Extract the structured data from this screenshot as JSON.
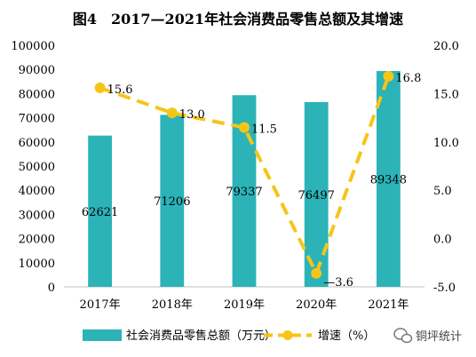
{
  "chart_data": {
    "type": "bar",
    "title": "图4　2017—2021年社会消费品零售总额及其增速",
    "categories": [
      "2017年",
      "2018年",
      "2019年",
      "2020年",
      "2021年"
    ],
    "series": [
      {
        "name": "社会消费品零售总额（万元）",
        "type": "bar",
        "axis": "left",
        "color": "#2bb3b8",
        "values": [
          62621,
          71206,
          79337,
          76497,
          89348
        ],
        "labels": [
          "62621",
          "71206",
          "79337",
          "76497",
          "89348"
        ]
      },
      {
        "name": "增速（%）",
        "type": "line",
        "style": "dashed",
        "axis": "right",
        "color": "#f5c518",
        "values": [
          15.6,
          13.0,
          11.5,
          -3.6,
          16.8
        ],
        "labels": [
          "15.6",
          "13.0",
          "11.5",
          "-3.6",
          "16.8"
        ]
      }
    ],
    "y_left": {
      "range": [
        0,
        100000
      ],
      "ticks": [
        "0",
        "10000",
        "20000",
        "30000",
        "40000",
        "50000",
        "60000",
        "70000",
        "80000",
        "90000",
        "100000"
      ]
    },
    "y_right": {
      "range": [
        -5,
        20
      ],
      "ticks": [
        "-5.0",
        "0.0",
        "5.0",
        "10.0",
        "15.0",
        "20.0"
      ]
    },
    "grid": false,
    "legend_position": "bottom"
  },
  "watermark": {
    "text": "铜坪统计",
    "icon": "wechat-icon"
  }
}
